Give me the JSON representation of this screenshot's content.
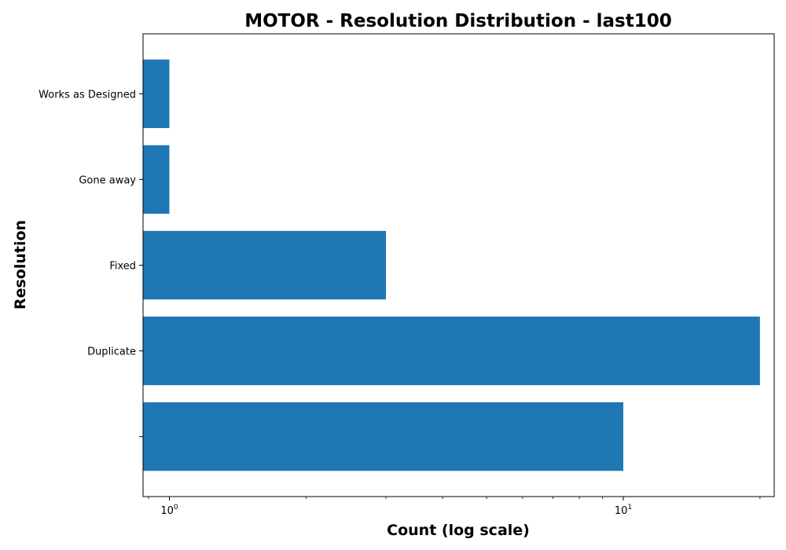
{
  "chart_data": {
    "type": "bar",
    "orientation": "horizontal",
    "title": "MOTOR - Resolution Distribution - last100",
    "xlabel": "Count (log scale)",
    "ylabel": "Resolution",
    "x_scale": "log",
    "xlim": [
      0.875,
      21.5
    ],
    "x_ticks": [
      {
        "value": 1,
        "base": "10",
        "exp": "0"
      },
      {
        "value": 10,
        "base": "10",
        "exp": "1"
      }
    ],
    "categories": [
      "",
      "Duplicate",
      "Fixed",
      "Gone away",
      "Works as Designed"
    ],
    "values": [
      10,
      20,
      3,
      1,
      1
    ],
    "bar_color": "#1f77b4",
    "grid": false,
    "legend": "none"
  }
}
